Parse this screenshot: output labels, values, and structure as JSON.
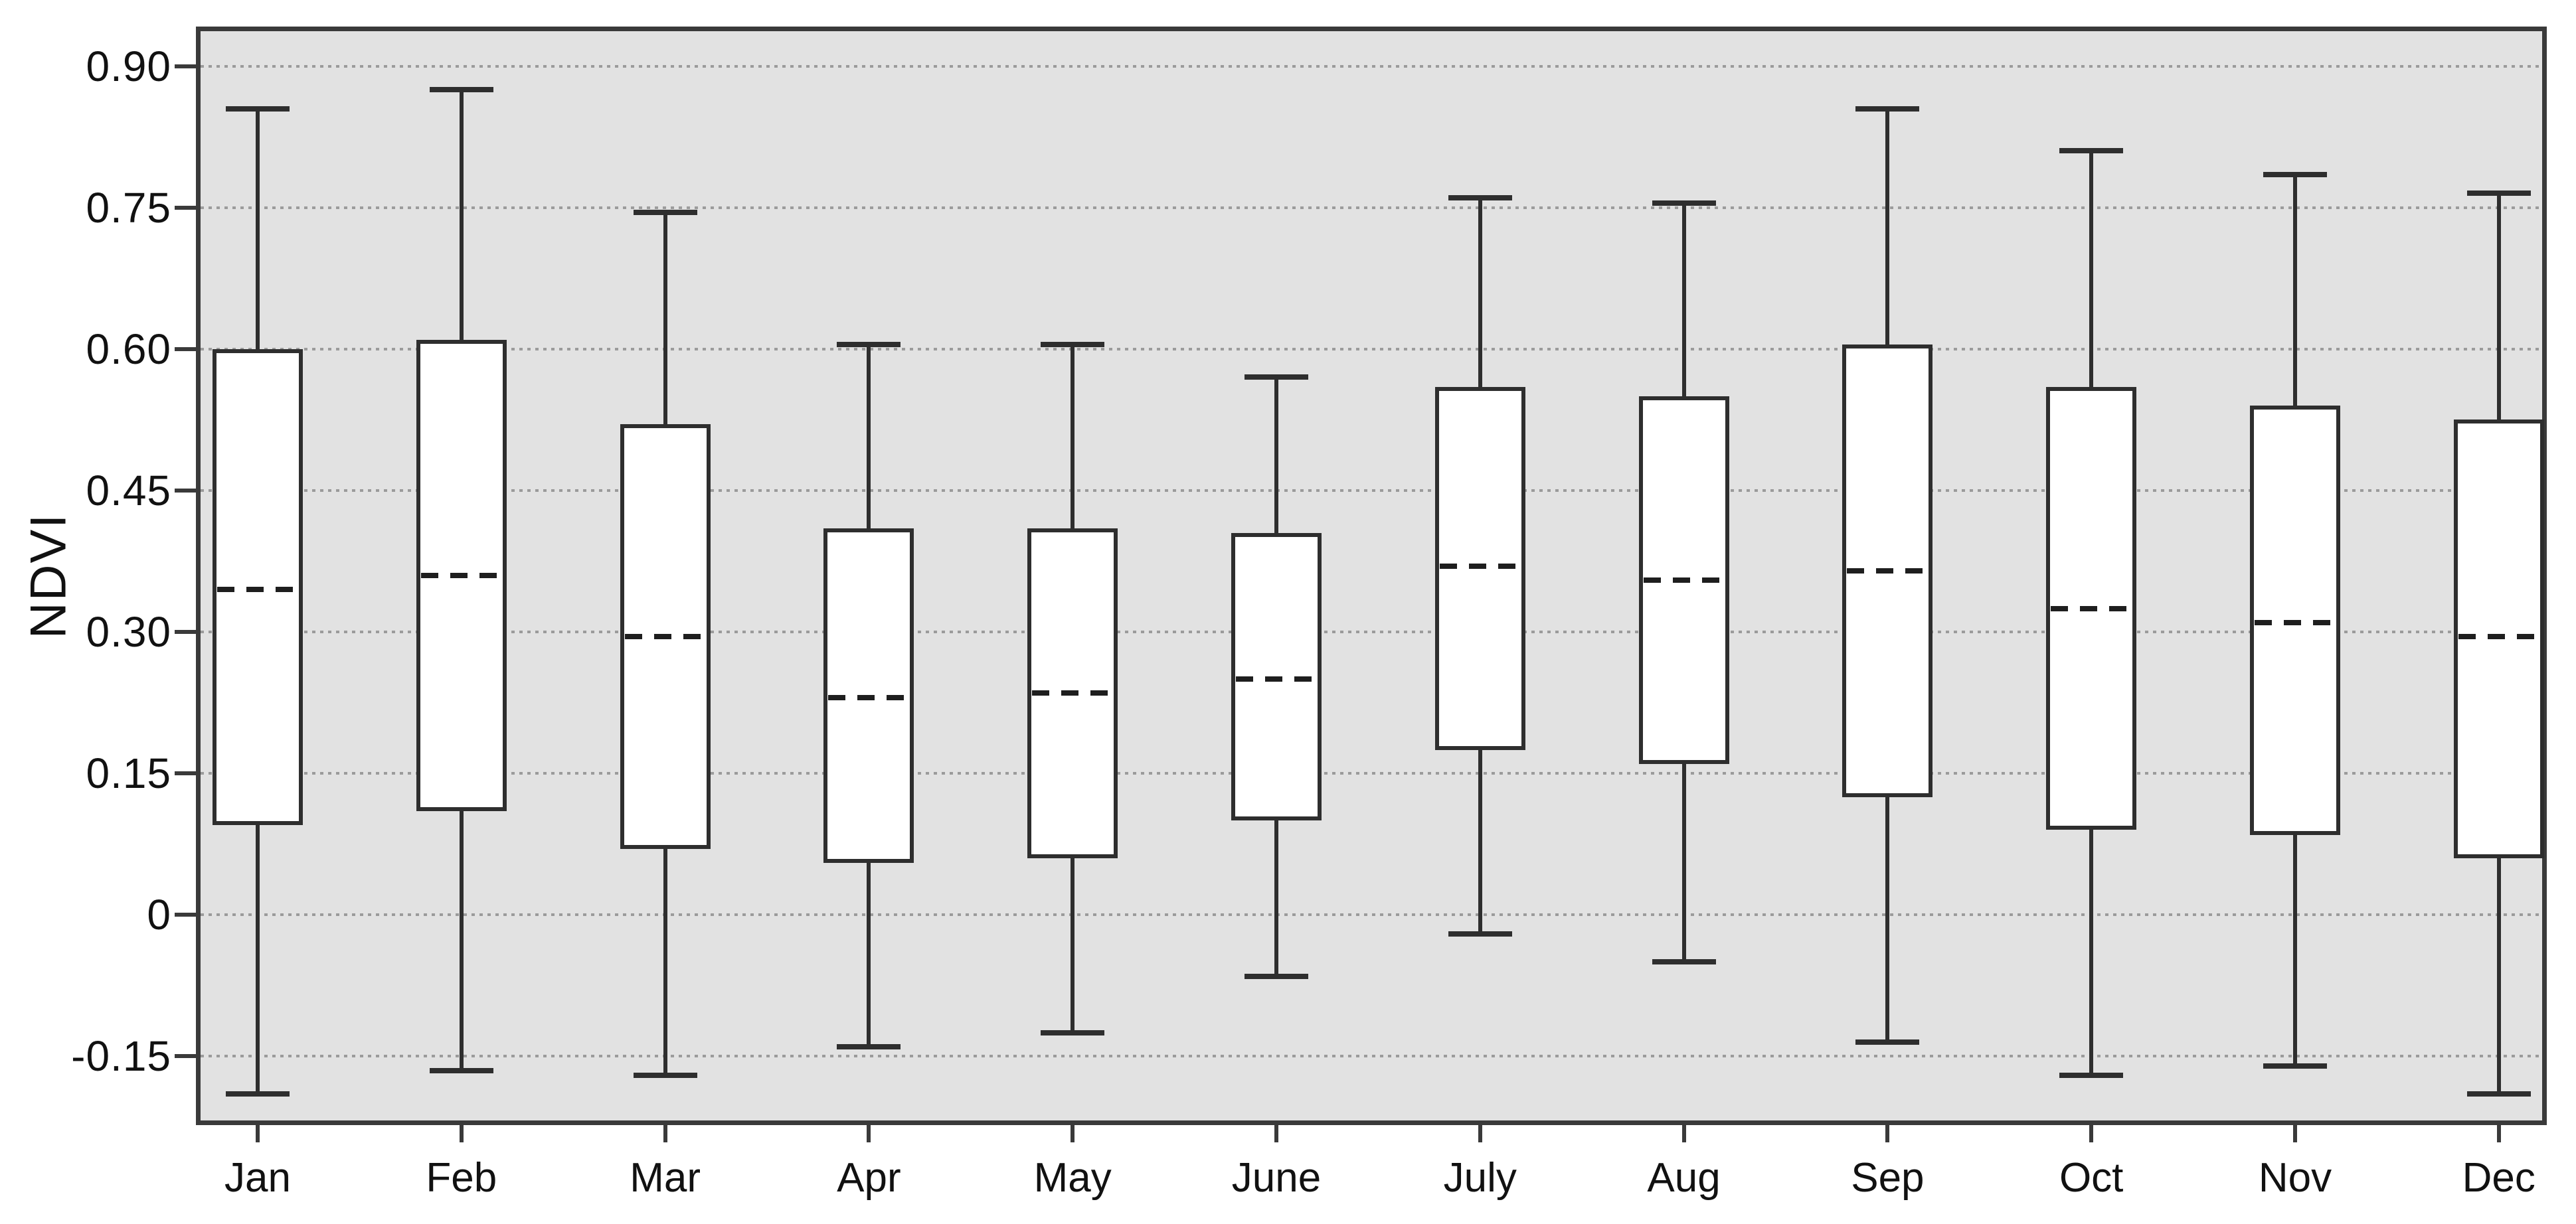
{
  "colors": {
    "plot_background": "#e2e2e2",
    "page_background": "#ffffff",
    "line": "#2e2e2e",
    "gridline": "#9b9b9b",
    "box_fill": "#ffffff",
    "text": "#111111"
  },
  "chart_data": {
    "type": "boxplot",
    "title": "",
    "xlabel": "",
    "ylabel": "NDVI",
    "legend": "none",
    "grid": "horizontal dotted gridlines at every y tick",
    "ylim": [
      -0.218,
      0.937
    ],
    "y_ticks": [
      0.9,
      0.75,
      0.6,
      0.45,
      0.3,
      0.15,
      0,
      -0.15
    ],
    "y_tick_labels": [
      "0.90",
      "0.75",
      "0.60",
      "0.45",
      "0.30",
      "0.15",
      "0",
      "-0.15"
    ],
    "categories": [
      "Jan",
      "Feb",
      "Mar",
      "Apr",
      "May",
      "June",
      "July",
      "Aug",
      "Sep",
      "Oct",
      "Nov",
      "Dec"
    ],
    "series": [
      {
        "month": "Jan",
        "whisker_low": -0.19,
        "q1": 0.095,
        "median": 0.345,
        "q3": 0.6,
        "whisker_high": 0.855
      },
      {
        "month": "Feb",
        "whisker_low": -0.165,
        "q1": 0.11,
        "median": 0.36,
        "q3": 0.61,
        "whisker_high": 0.875
      },
      {
        "month": "Mar",
        "whisker_low": -0.17,
        "q1": 0.07,
        "median": 0.295,
        "q3": 0.52,
        "whisker_high": 0.745
      },
      {
        "month": "Apr",
        "whisker_low": -0.14,
        "q1": 0.055,
        "median": 0.23,
        "q3": 0.41,
        "whisker_high": 0.605
      },
      {
        "month": "May",
        "whisker_low": -0.125,
        "q1": 0.06,
        "median": 0.235,
        "q3": 0.41,
        "whisker_high": 0.605
      },
      {
        "month": "June",
        "whisker_low": -0.065,
        "q1": 0.1,
        "median": 0.25,
        "q3": 0.405,
        "whisker_high": 0.57
      },
      {
        "month": "July",
        "whisker_low": -0.02,
        "q1": 0.175,
        "median": 0.37,
        "q3": 0.56,
        "whisker_high": 0.76
      },
      {
        "month": "Aug",
        "whisker_low": -0.05,
        "q1": 0.16,
        "median": 0.355,
        "q3": 0.55,
        "whisker_high": 0.755
      },
      {
        "month": "Sep",
        "whisker_low": -0.135,
        "q1": 0.125,
        "median": 0.365,
        "q3": 0.605,
        "whisker_high": 0.855
      },
      {
        "month": "Oct",
        "whisker_low": -0.17,
        "q1": 0.09,
        "median": 0.325,
        "q3": 0.56,
        "whisker_high": 0.81
      },
      {
        "month": "Nov",
        "whisker_low": -0.16,
        "q1": 0.085,
        "median": 0.31,
        "q3": 0.54,
        "whisker_high": 0.785
      },
      {
        "month": "Dec",
        "whisker_low": -0.19,
        "q1": 0.06,
        "median": 0.295,
        "q3": 0.525,
        "whisker_high": 0.765
      }
    ]
  }
}
